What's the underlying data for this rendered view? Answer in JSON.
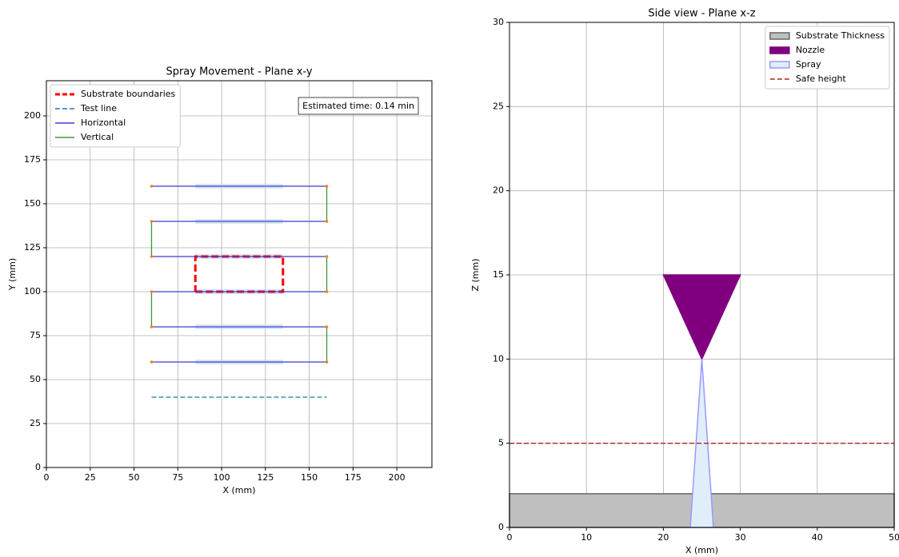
{
  "chart_data": [
    {
      "type": "line",
      "title": "Spray Movement - Plane x-y",
      "x_label": "X (mm)",
      "y_label": "Y (mm)",
      "annotation": "Estimated time: 0.14 min",
      "xlim": [
        0,
        220
      ],
      "ylim": [
        0,
        220
      ],
      "xticks": [
        0,
        25,
        50,
        75,
        100,
        125,
        150,
        175,
        200
      ],
      "yticks": [
        0,
        25,
        50,
        75,
        100,
        125,
        150,
        175,
        200
      ],
      "grid": true,
      "legend": "upper left",
      "series": [
        {
          "kind": "band",
          "color": "#c6dbef",
          "x": [
            85,
            135,
            null,
            85,
            135,
            null,
            85,
            135,
            null,
            85,
            135,
            null,
            85,
            135,
            null,
            85,
            135
          ],
          "values": [
            60,
            60,
            null,
            80,
            80,
            null,
            100,
            100,
            null,
            120,
            120,
            null,
            140,
            140,
            null,
            160,
            160
          ]
        },
        {
          "name": "Substrate boundaries",
          "kind": "line",
          "dashed": true,
          "bold": true,
          "color": "#ff0000",
          "x": [
            85,
            135,
            135,
            85,
            85
          ],
          "values": [
            100,
            100,
            120,
            120,
            100
          ]
        },
        {
          "name": "Test line",
          "kind": "line",
          "dashed": true,
          "color": "#1f77b4",
          "x": [
            60,
            160
          ],
          "values": [
            40,
            40
          ]
        },
        {
          "name": "Horizontal",
          "kind": "line",
          "color": "#3b3bd6",
          "x": [
            60,
            160,
            null,
            60,
            160,
            null,
            60,
            160,
            null,
            60,
            160,
            null,
            60,
            160,
            null,
            60,
            160
          ],
          "values": [
            60,
            60,
            null,
            80,
            80,
            null,
            100,
            100,
            null,
            120,
            120,
            null,
            140,
            140,
            null,
            160,
            160
          ]
        },
        {
          "name": "Vertical",
          "kind": "line",
          "color": "#3a9a3a",
          "x": [
            160,
            160,
            null,
            60,
            60,
            null,
            160,
            160,
            null,
            60,
            60,
            null,
            160,
            160
          ],
          "values": [
            60,
            80,
            null,
            80,
            100,
            null,
            100,
            120,
            null,
            120,
            140,
            null,
            140,
            160
          ]
        },
        {
          "kind": "points",
          "color": "#ff7f0e",
          "x": [
            60,
            160,
            60,
            160,
            60,
            160,
            60,
            160,
            60,
            160,
            60,
            160
          ],
          "values": [
            60,
            60,
            80,
            80,
            100,
            100,
            120,
            120,
            140,
            140,
            160,
            160
          ]
        }
      ]
    },
    {
      "type": "line",
      "title": "Side view - Plane x-z",
      "x_label": "X (mm)",
      "y_label": "Z (mm)",
      "xlim": [
        0,
        50
      ],
      "ylim": [
        0,
        30
      ],
      "xticks": [
        0,
        10,
        20,
        30,
        40,
        50
      ],
      "yticks": [
        0,
        5,
        10,
        15,
        20,
        25,
        30
      ],
      "grid": true,
      "legend": "upper right",
      "series": [
        {
          "name": "Substrate Thickness",
          "kind": "polygon",
          "color": "#bfbfbf",
          "edge": "#666666",
          "x": [
            0,
            50,
            50,
            0
          ],
          "values": [
            0,
            0,
            2,
            2
          ]
        },
        {
          "name": "Nozzle",
          "kind": "polygon",
          "color": "#800080",
          "edge": "#800080",
          "x": [
            20,
            30,
            25
          ],
          "values": [
            15,
            15,
            10
          ]
        },
        {
          "name": "Spray",
          "kind": "polygon",
          "color": "#e0eefa",
          "edge": "#9999ff",
          "x": [
            25,
            23.5,
            26.5
          ],
          "values": [
            10,
            0,
            0
          ]
        },
        {
          "name": "Safe height",
          "kind": "line",
          "dashed": true,
          "color": "#b22222",
          "x": [
            0,
            50
          ],
          "values": [
            5,
            5
          ]
        }
      ]
    }
  ]
}
